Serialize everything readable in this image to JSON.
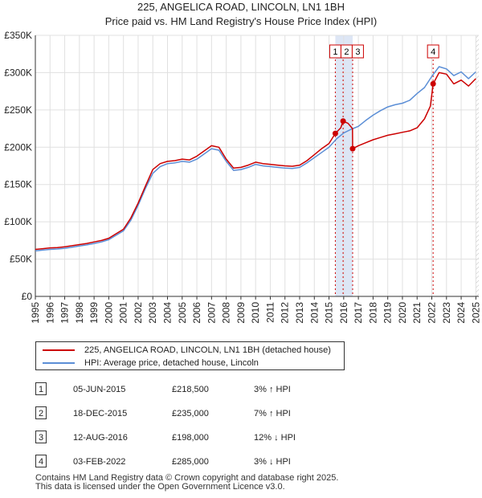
{
  "chart_data": {
    "type": "line",
    "title": "225, ANGELICA ROAD, LINCOLN, LN1 1BH",
    "subtitle": "Price paid vs. HM Land Registry's House Price Index (HPI)",
    "xlim": [
      1995.0,
      2025.2
    ],
    "ylim": [
      0,
      350000
    ],
    "x_ticks": [
      1995,
      1996,
      1997,
      1998,
      1999,
      2000,
      2001,
      2002,
      2003,
      2004,
      2005,
      2006,
      2007,
      2008,
      2009,
      2010,
      2011,
      2012,
      2013,
      2014,
      2015,
      2016,
      2017,
      2018,
      2019,
      2020,
      2021,
      2022,
      2023,
      2024,
      2025
    ],
    "y_ticks": [
      {
        "value": 0,
        "label": "£0"
      },
      {
        "value": 50000,
        "label": "£50K"
      },
      {
        "value": 100000,
        "label": "£100K"
      },
      {
        "value": 150000,
        "label": "£150K"
      },
      {
        "value": 200000,
        "label": "£200K"
      },
      {
        "value": 250000,
        "label": "£250K"
      },
      {
        "value": 300000,
        "label": "£300K"
      },
      {
        "value": 350000,
        "label": "£350K"
      }
    ],
    "grid": true,
    "shaded_region": {
      "from": 2015.43,
      "to": 2016.61,
      "color": "#dde6f5"
    },
    "future_hatch_from": 2025.0,
    "series": [
      {
        "name": "225, ANGELICA ROAD, LINCOLN, LN1 1BH (detached house)",
        "color": "#cc0000",
        "x": [
          1995.0,
          1995.5,
          1996.0,
          1996.5,
          1997.0,
          1997.5,
          1998.0,
          1998.5,
          1999.0,
          1999.5,
          2000.0,
          2000.5,
          2001.0,
          2001.5,
          2002.0,
          2002.5,
          2003.0,
          2003.5,
          2004.0,
          2004.5,
          2005.0,
          2005.5,
          2006.0,
          2006.5,
          2007.0,
          2007.5,
          2008.0,
          2008.5,
          2009.0,
          2009.5,
          2010.0,
          2010.5,
          2011.0,
          2011.5,
          2012.0,
          2012.5,
          2013.0,
          2013.5,
          2014.0,
          2014.5,
          2015.0,
          2015.43,
          2015.8,
          2015.96,
          2016.3,
          2016.6,
          2016.61,
          2017.0,
          2017.5,
          2018.0,
          2018.5,
          2019.0,
          2019.5,
          2020.0,
          2020.5,
          2021.0,
          2021.5,
          2021.9,
          2022.09,
          2022.5,
          2023.0,
          2023.5,
          2024.0,
          2024.5,
          2025.0
        ],
        "values": [
          63000,
          64000,
          65000,
          65500,
          66500,
          68000,
          69500,
          71000,
          73000,
          75000,
          78000,
          84000,
          90000,
          105000,
          125000,
          148000,
          170000,
          178000,
          181000,
          182000,
          184000,
          183000,
          188000,
          195000,
          202000,
          200000,
          184000,
          172000,
          173000,
          176000,
          180000,
          178000,
          177000,
          176000,
          175000,
          174500,
          176000,
          182000,
          190000,
          198000,
          205000,
          218500,
          226000,
          235000,
          232000,
          225000,
          198000,
          202000,
          206000,
          210000,
          213000,
          216000,
          218000,
          220000,
          222000,
          226000,
          238000,
          255000,
          285000,
          300000,
          298000,
          285000,
          290000,
          282000,
          292000
        ]
      },
      {
        "name": "HPI: Average price, detached house, Lincoln",
        "color": "#5b8ed6",
        "x": [
          1995.0,
          1995.5,
          1996.0,
          1996.5,
          1997.0,
          1997.5,
          1998.0,
          1998.5,
          1999.0,
          1999.5,
          2000.0,
          2000.5,
          2001.0,
          2001.5,
          2002.0,
          2002.5,
          2003.0,
          2003.5,
          2004.0,
          2004.5,
          2005.0,
          2005.5,
          2006.0,
          2006.5,
          2007.0,
          2007.5,
          2008.0,
          2008.5,
          2009.0,
          2009.5,
          2010.0,
          2010.5,
          2011.0,
          2011.5,
          2012.0,
          2012.5,
          2013.0,
          2013.5,
          2014.0,
          2014.5,
          2015.0,
          2015.5,
          2016.0,
          2016.5,
          2017.0,
          2017.5,
          2018.0,
          2018.5,
          2019.0,
          2019.5,
          2020.0,
          2020.5,
          2021.0,
          2021.5,
          2022.0,
          2022.5,
          2023.0,
          2023.5,
          2024.0,
          2024.5,
          2025.0
        ],
        "values": [
          61000,
          62000,
          63000,
          63500,
          64500,
          66000,
          67500,
          69000,
          71000,
          73000,
          76000,
          82000,
          88000,
          102000,
          122000,
          145000,
          165000,
          174000,
          178000,
          179000,
          181000,
          180000,
          184000,
          191000,
          198000,
          196000,
          181000,
          169000,
          170000,
          173000,
          177000,
          175000,
          174000,
          173000,
          172000,
          171500,
          173000,
          179000,
          186000,
          193000,
          200000,
          211000,
          219000,
          224000,
          228000,
          236000,
          243000,
          249000,
          254000,
          257000,
          259000,
          263000,
          272000,
          280000,
          295000,
          308000,
          305000,
          296000,
          301000,
          292000,
          301000
        ]
      }
    ],
    "markers": [
      {
        "label": "1",
        "x": 2015.43,
        "value": 218500
      },
      {
        "label": "2",
        "x": 2015.96,
        "value": 235000
      },
      {
        "label": "3",
        "x": 2016.61,
        "value": 198000
      },
      {
        "label": "4",
        "x": 2022.09,
        "value": 285000
      }
    ]
  },
  "legend": {
    "property_label": "225, ANGELICA ROAD, LINCOLN, LN1 1BH (detached house)",
    "hpi_label": "HPI: Average price, detached house, Lincoln"
  },
  "transactions": [
    {
      "num": "1",
      "date": "05-JUN-2015",
      "price": "£218,500",
      "hpi": "3% ↑ HPI"
    },
    {
      "num": "2",
      "date": "18-DEC-2015",
      "price": "£235,000",
      "hpi": "7% ↑ HPI"
    },
    {
      "num": "3",
      "date": "12-AUG-2016",
      "price": "£198,000",
      "hpi": "12% ↓ HPI"
    },
    {
      "num": "4",
      "date": "03-FEB-2022",
      "price": "£285,000",
      "hpi": "3% ↓ HPI"
    }
  ],
  "footer": {
    "line1": "Contains HM Land Registry data © Crown copyright and database right 2025.",
    "line2": "This data is licensed under the Open Government Licence v3.0."
  },
  "colors": {
    "property": "#cc0000",
    "hpi": "#5b8ed6",
    "shade": "#dde6f5",
    "grid": "#e0e0e0"
  }
}
